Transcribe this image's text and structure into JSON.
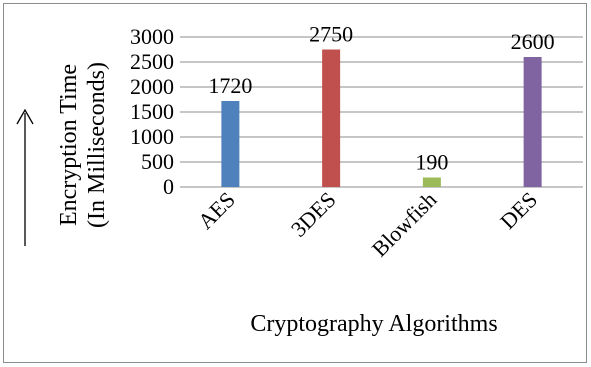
{
  "chart_data": {
    "type": "bar",
    "categories": [
      "AES",
      "3DES",
      "Blowfish",
      "DES"
    ],
    "values": [
      1720,
      2750,
      190,
      2600
    ],
    "data_labels": [
      "1720",
      "2750",
      "190",
      "2600"
    ],
    "colors": [
      "#4f81bd",
      "#c0504d",
      "#9bbb59",
      "#8064a2"
    ],
    "ylabel_line1": "Encryption Time",
    "ylabel_line2": "(In Milliseconds)",
    "xlabel": "Cryptography Algorithms",
    "ylim": [
      0,
      3000
    ],
    "yticks": [
      0,
      500,
      1000,
      1500,
      2000,
      2500,
      3000
    ],
    "ytick_labels": [
      "0",
      "500",
      "1000",
      "1500",
      "2000",
      "2500",
      "3000"
    ],
    "grid": true,
    "legend": "none",
    "y_arrow": "up-arrow"
  }
}
